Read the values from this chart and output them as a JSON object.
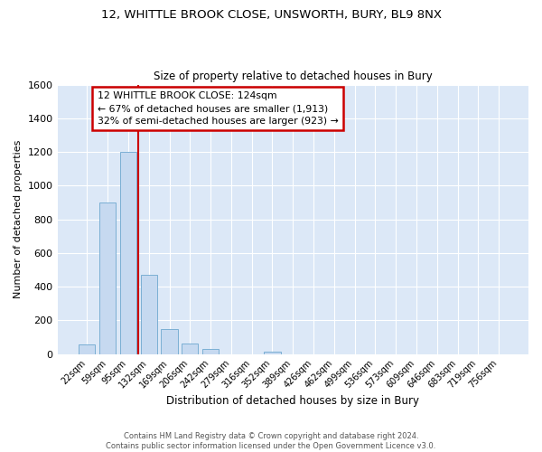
{
  "title_line1": "12, WHITTLE BROOK CLOSE, UNSWORTH, BURY, BL9 8NX",
  "title_line2": "Size of property relative to detached houses in Bury",
  "xlabel": "Distribution of detached houses by size in Bury",
  "ylabel": "Number of detached properties",
  "bar_color": "#c6d9f0",
  "bar_edge_color": "#7bafd4",
  "bin_labels": [
    "22sqm",
    "59sqm",
    "95sqm",
    "132sqm",
    "169sqm",
    "206sqm",
    "242sqm",
    "279sqm",
    "316sqm",
    "352sqm",
    "389sqm",
    "426sqm",
    "462sqm",
    "499sqm",
    "536sqm",
    "573sqm",
    "609sqm",
    "646sqm",
    "683sqm",
    "719sqm",
    "756sqm"
  ],
  "bar_heights": [
    55,
    900,
    1200,
    470,
    150,
    60,
    30,
    0,
    0,
    15,
    0,
    0,
    0,
    0,
    0,
    0,
    0,
    0,
    0,
    0,
    0
  ],
  "vline_x_index": 2.5,
  "annotation_title": "12 WHITTLE BROOK CLOSE: 124sqm",
  "annotation_line1": "← 67% of detached houses are smaller (1,913)",
  "annotation_line2": "32% of semi-detached houses are larger (923) →",
  "vline_color": "#cc0000",
  "ylim": [
    0,
    1600
  ],
  "yticks": [
    0,
    200,
    400,
    600,
    800,
    1000,
    1200,
    1400,
    1600
  ],
  "footer_line1": "Contains HM Land Registry data © Crown copyright and database right 2024.",
  "footer_line2": "Contains public sector information licensed under the Open Government Licence v3.0.",
  "bg_color": "#ffffff",
  "plot_bg_color": "#dce8f7",
  "grid_color": "#ffffff"
}
